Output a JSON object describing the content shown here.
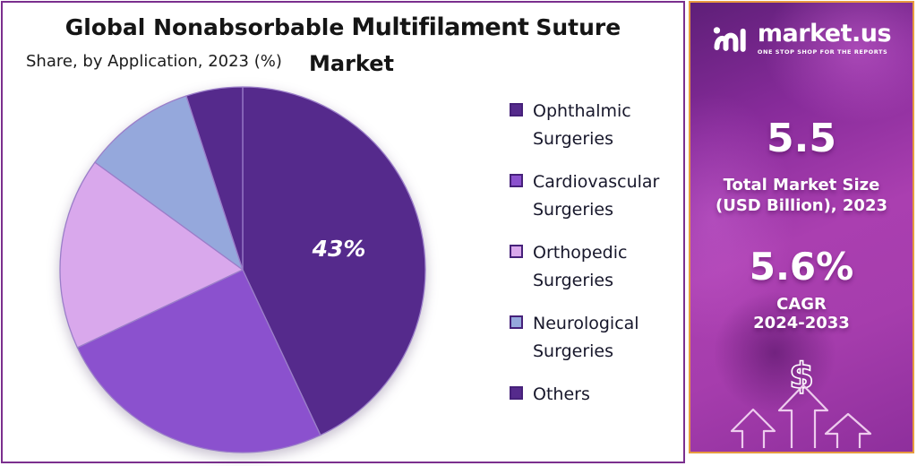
{
  "header": {
    "title_part1": "Global Nonabsorbable",
    "title_part2": "Multifilament",
    "title_part3": "Suture",
    "title_part4": "Market",
    "subtitle": "Share, by Application, 2023 (%)"
  },
  "chart_data": {
    "type": "pie",
    "title": "Global Nonabsorbable Multifilament Suture Market",
    "subtitle": "Share, by Application, 2023 (%)",
    "unit": "%",
    "start_angle_deg": 0,
    "direction": "clockwise",
    "legend_position": "right",
    "segments": [
      {
        "label": "Ophthalmic Surgeries",
        "value": 43,
        "color": "#552A8C",
        "data_label": "43%"
      },
      {
        "label": "Cardiovascular Surgeries",
        "value": 25,
        "color": "#8B51CE",
        "data_label": ""
      },
      {
        "label": "Orthopedic Surgeries",
        "value": 17,
        "color": "#D9A8EC",
        "data_label": ""
      },
      {
        "label": "Neurological Surgeries",
        "value": 10,
        "color": "#95A8DC",
        "data_label": ""
      },
      {
        "label": "Others",
        "value": 5,
        "color": "#552A8C",
        "data_label": ""
      }
    ]
  },
  "colors": {
    "panel_border": "#7B2F8E",
    "sidebar_border": "#E79A3F",
    "slice_stroke": "#9B7EC9",
    "swatch_border": "#46217A",
    "pie_label_text": "#FFFFFF"
  },
  "sidebar": {
    "brand": "market.us",
    "tagline": "ONE STOP SHOP FOR THE REPORTS",
    "market_size_value": "5.5",
    "market_size_label_line1": "Total Market Size",
    "market_size_label_line2": "(USD Billion), 2023",
    "cagr_value": "5.6%",
    "cagr_label_line1": "CAGR",
    "cagr_label_line2": "2024-2033",
    "dollar_symbol": "$"
  }
}
